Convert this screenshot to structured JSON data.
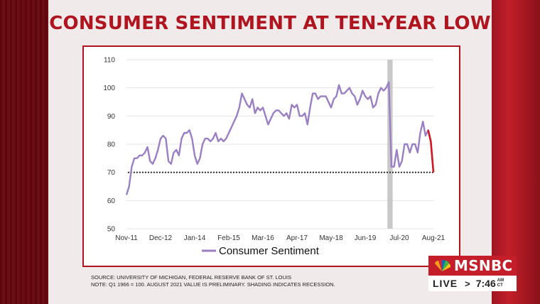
{
  "headline": "CONSUMER SENTIMENT AT TEN-YEAR LOW",
  "source_line1": "SOURCE: UNIVERSITY OF MICHIGAN, FEDERAL RESERVE BANK OF ST. LOUIS",
  "source_line2": "NOTE: Q1 1966 = 100. AUGUST 2021 VALUE IS PRELIMINARY. SHADING INDICATES RECESSION.",
  "network": {
    "name": "MSNBC",
    "live_label": "LIVE",
    "arrow": ">",
    "time": "7:46",
    "ampm_top": "AM",
    "ampm_bottom": "CT"
  },
  "colors": {
    "headline": "#b0141e",
    "series": "#9a7fc4",
    "latest_segment": "#d4141e",
    "recession": "#c8c8c8",
    "reference_line": "#111111"
  },
  "chart_data": {
    "type": "line",
    "title": "CONSUMER SENTIMENT AT TEN-YEAR LOW",
    "xlabel": "",
    "ylabel": "",
    "ylim": [
      50,
      110
    ],
    "yticks": [
      50,
      60,
      70,
      80,
      90,
      100,
      110
    ],
    "xlim": [
      0,
      117
    ],
    "xticks": [
      {
        "label": "Nov-11",
        "x": 0
      },
      {
        "label": "Dec-12",
        "x": 13
      },
      {
        "label": "Jan-14",
        "x": 26
      },
      {
        "label": "Feb-15",
        "x": 39
      },
      {
        "label": "Mar-16",
        "x": 52
      },
      {
        "label": "Apr-17",
        "x": 65
      },
      {
        "label": "May-18",
        "x": 78
      },
      {
        "label": "Jun-19",
        "x": 91
      },
      {
        "label": "Jul-20",
        "x": 104
      },
      {
        "label": "Aug-21",
        "x": 117
      }
    ],
    "legend": "bottom",
    "grid": "horizontal",
    "recession": {
      "start": 100,
      "end": 102
    },
    "reference_line": {
      "value": 70,
      "style": "dotted"
    },
    "series": [
      {
        "name": "Consumer Sentiment",
        "values": [
          62,
          65,
          72,
          75,
          75,
          76,
          76,
          77,
          79,
          74,
          73,
          75,
          78,
          82,
          83,
          82,
          74,
          73,
          77,
          78,
          76,
          82,
          84,
          84,
          85,
          82,
          76,
          73,
          75,
          80,
          82,
          82,
          81,
          82,
          84,
          81,
          82,
          81,
          82,
          84,
          86,
          88,
          90,
          93,
          98,
          96,
          94,
          93,
          96,
          91,
          93,
          92,
          93,
          90,
          87,
          89,
          91,
          92,
          92,
          91,
          90,
          91,
          89,
          94,
          93,
          94,
          90,
          90,
          91,
          87,
          93,
          98,
          98,
          96,
          97,
          97,
          97,
          95,
          93,
          96,
          97,
          101,
          98,
          98,
          99,
          100,
          98,
          97,
          94,
          96,
          99,
          97,
          96,
          97,
          93,
          94,
          98,
          100,
          99,
          100,
          102,
          72,
          72,
          78,
          72,
          74,
          80,
          80,
          77,
          80,
          80,
          77,
          84,
          88,
          83,
          85,
          81,
          70
        ],
        "highlight_last": 2
      }
    ]
  }
}
